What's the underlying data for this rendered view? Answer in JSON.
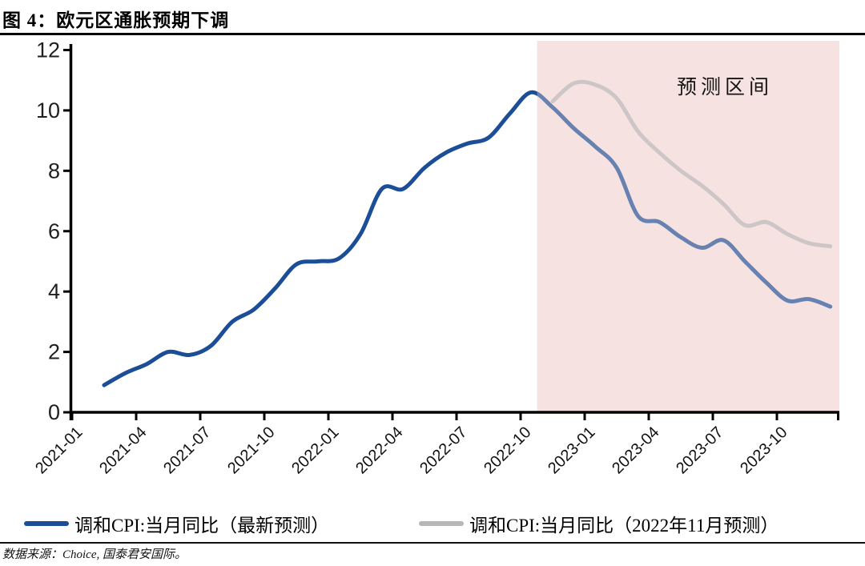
{
  "header": {
    "title": "图 4：欧元区通胀预期下调"
  },
  "chart_data": {
    "type": "line",
    "title": "图 4：欧元区通胀预期下调",
    "xlabel": "",
    "ylabel": "",
    "ylim": [
      0,
      12
    ],
    "ytick_step": 2,
    "ytick_labels": [
      "0",
      "2",
      "4",
      "6",
      "8",
      "10",
      "12"
    ],
    "xtick_labels": [
      "2021-01",
      "2021-04",
      "2021-07",
      "2021-10",
      "2022-01",
      "2022-04",
      "2022-07",
      "2022-10",
      "2023-01",
      "2023-04",
      "2023-07",
      "2023-10"
    ],
    "grid": "off",
    "legend_position": "bottom",
    "forecast_region": {
      "label": "预测区间",
      "start_month": "2022-11",
      "end_month": "2024-01",
      "fill_color": "#f6e3e1"
    },
    "series": [
      {
        "name": "调和CPI:当月同比（最新预测）",
        "color": "#1b4e97",
        "start_month": "2021-02",
        "months": [
          "2021-02",
          "2021-03",
          "2021-04",
          "2021-05",
          "2021-06",
          "2021-07",
          "2021-08",
          "2021-09",
          "2021-10",
          "2021-11",
          "2021-12",
          "2022-01",
          "2022-02",
          "2022-03",
          "2022-04",
          "2022-05",
          "2022-06",
          "2022-07",
          "2022-08",
          "2022-09",
          "2022-10",
          "2022-11",
          "2022-12",
          "2023-01",
          "2023-02",
          "2023-03",
          "2023-04",
          "2023-05",
          "2023-06",
          "2023-07",
          "2023-08",
          "2023-09",
          "2023-10",
          "2023-11",
          "2023-12"
        ],
        "values": [
          0.9,
          1.3,
          1.6,
          2.0,
          1.9,
          2.2,
          3.0,
          3.4,
          4.1,
          4.9,
          5.0,
          5.1,
          5.9,
          7.4,
          7.4,
          8.1,
          8.6,
          8.9,
          9.1,
          9.9,
          10.6,
          10.1,
          9.4,
          8.8,
          8.1,
          6.5,
          6.3,
          5.8,
          5.45,
          5.7,
          5.0,
          4.3,
          3.7,
          3.75,
          3.5
        ]
      },
      {
        "name": "调和CPI:当月同比（2022年11月预测）",
        "color": "#b7b7b7",
        "start_month": "2022-11",
        "months": [
          "2022-11",
          "2022-12",
          "2023-01",
          "2023-02",
          "2023-03",
          "2023-04",
          "2023-05",
          "2023-06",
          "2023-07",
          "2023-08",
          "2023-09",
          "2023-10",
          "2023-11",
          "2023-12"
        ],
        "values": [
          10.3,
          10.9,
          10.85,
          10.4,
          9.3,
          8.6,
          8.0,
          7.5,
          6.9,
          6.2,
          6.3,
          5.9,
          5.6,
          5.5
        ]
      }
    ],
    "axis_color": "#000000",
    "tick_label_color": "#1f1f1f"
  },
  "footer": {
    "source": "数据来源：Choice, 国泰君安国际。"
  }
}
